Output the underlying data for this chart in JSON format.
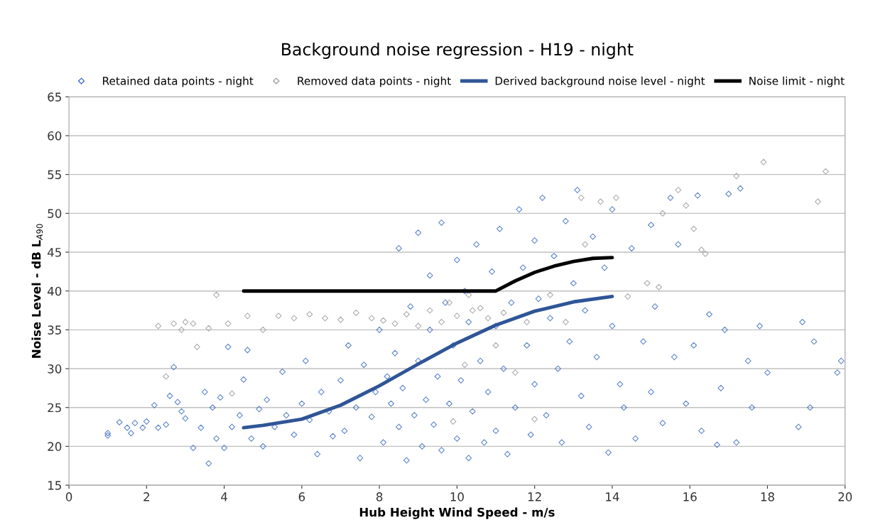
{
  "chart_data": {
    "type": "scatter",
    "title": "Background noise regression - H19 - night",
    "xlabel": "Hub Height Wind Speed - m/s",
    "ylabel": "Noise Level - dB L$_{A90}$",
    "xlim": [
      0,
      20
    ],
    "xticks": [
      0,
      2,
      4,
      6,
      8,
      10,
      12,
      14,
      16,
      18,
      20
    ],
    "ylim": [
      15,
      65
    ],
    "yticks": [
      15,
      20,
      25,
      30,
      35,
      40,
      45,
      50,
      55,
      60,
      65
    ],
    "grid": "y",
    "legend": "top",
    "series": [
      {
        "name": "Retained data points - night",
        "marker": "diamond",
        "color": "#4472c4",
        "x": [
          1.0,
          1.0,
          1.3,
          1.5,
          1.6,
          1.7,
          1.9,
          2.0,
          2.2,
          2.3,
          2.5,
          2.6,
          2.7,
          2.8,
          2.9,
          3.0,
          3.2,
          3.4,
          3.5,
          3.6,
          3.7,
          3.8,
          3.9,
          4.0,
          4.1,
          4.2,
          4.4,
          4.5,
          4.6,
          4.7,
          4.9,
          5.0,
          5.1,
          5.3,
          5.5,
          5.6,
          5.8,
          6.0,
          6.1,
          6.2,
          6.4,
          6.5,
          6.7,
          6.8,
          7.0,
          7.1,
          7.2,
          7.4,
          7.5,
          7.6,
          7.8,
          7.9,
          8.0,
          8.1,
          8.2,
          8.3,
          8.4,
          8.5,
          8.5,
          8.6,
          8.7,
          8.8,
          8.9,
          9.0,
          9.0,
          9.1,
          9.2,
          9.3,
          9.3,
          9.4,
          9.5,
          9.6,
          9.6,
          9.7,
          9.8,
          9.9,
          10.0,
          10.0,
          10.1,
          10.2,
          10.3,
          10.3,
          10.4,
          10.5,
          10.6,
          10.7,
          10.8,
          10.9,
          11.0,
          11.0,
          11.1,
          11.2,
          11.3,
          11.4,
          11.5,
          11.6,
          11.7,
          11.8,
          11.9,
          12.0,
          12.0,
          12.1,
          12.2,
          12.3,
          12.4,
          12.5,
          12.6,
          12.7,
          12.8,
          12.9,
          13.0,
          13.1,
          13.2,
          13.3,
          13.4,
          13.5,
          13.6,
          13.8,
          13.9,
          14.0,
          14.0,
          14.2,
          14.3,
          14.5,
          14.6,
          14.8,
          15.0,
          15.0,
          15.1,
          15.3,
          15.5,
          15.6,
          15.7,
          15.9,
          16.1,
          16.2,
          16.3,
          16.5,
          16.7,
          16.8,
          16.9,
          17.0,
          17.2,
          17.3,
          17.5,
          17.6,
          17.8,
          18.0,
          18.8,
          18.9,
          19.1,
          19.2,
          19.8,
          19.9
        ],
        "values": [
          21.7,
          21.4,
          23.1,
          22.4,
          21.7,
          23.0,
          22.4,
          23.2,
          25.3,
          22.4,
          22.8,
          26.5,
          30.2,
          25.7,
          24.5,
          23.6,
          19.8,
          22.4,
          27.0,
          17.8,
          25.0,
          21.0,
          26.3,
          19.8,
          32.8,
          22.5,
          24.0,
          28.6,
          32.4,
          21.0,
          24.8,
          20.0,
          26.0,
          22.5,
          29.6,
          24.0,
          21.5,
          25.5,
          31.0,
          23.4,
          19.0,
          27.0,
          24.5,
          21.3,
          28.5,
          22.0,
          33.0,
          25.0,
          18.5,
          30.5,
          23.8,
          27.0,
          35.0,
          20.5,
          29.0,
          25.5,
          32.0,
          45.5,
          22.5,
          27.5,
          18.2,
          38.0,
          24.0,
          47.5,
          31.0,
          20.0,
          26.0,
          42.0,
          35.0,
          22.8,
          29.0,
          48.8,
          19.5,
          38.5,
          25.5,
          33.0,
          44.0,
          21.0,
          28.5,
          40.0,
          18.5,
          36.0,
          24.5,
          46.0,
          31.0,
          20.5,
          27.0,
          42.5,
          35.5,
          22.0,
          48.0,
          30.0,
          19.0,
          38.5,
          25.0,
          50.5,
          43.0,
          33.0,
          21.5,
          46.5,
          28.0,
          39.0,
          52.0,
          24.0,
          36.5,
          44.5,
          30.0,
          20.5,
          49.0,
          33.5,
          41.0,
          53.0,
          26.5,
          37.5,
          22.5,
          47.0,
          31.5,
          43.0,
          19.2,
          35.5,
          50.5,
          28.0,
          25.0,
          45.5,
          21.0,
          33.5,
          48.5,
          27.0,
          38.0,
          23.0,
          52.0,
          31.5,
          46.0,
          25.5,
          33.0,
          52.3,
          22.0,
          37.0,
          20.2,
          27.5,
          35.0,
          52.5,
          20.5,
          53.2,
          31.0,
          25.0,
          35.5,
          29.5,
          22.5,
          36.0,
          25.0,
          33.5,
          29.5,
          31.0
        ]
      },
      {
        "name": "Removed data points - night",
        "marker": "diamond",
        "color": "#a0a0a0",
        "x": [
          2.3,
          2.5,
          2.7,
          2.9,
          3.0,
          3.2,
          3.3,
          3.6,
          3.8,
          4.1,
          4.2,
          4.6,
          5.0,
          5.4,
          5.8,
          6.2,
          6.6,
          7.0,
          7.4,
          7.8,
          8.1,
          8.4,
          8.7,
          9.0,
          9.3,
          9.6,
          9.8,
          10.0,
          10.2,
          10.4,
          10.6,
          10.8,
          11.0,
          11.2,
          11.5,
          11.8,
          12.0,
          12.4,
          12.8,
          13.2,
          13.7,
          14.1,
          14.9,
          15.3,
          15.7,
          15.9,
          16.1,
          16.3,
          16.4,
          17.2,
          17.9,
          19.3,
          19.5,
          13.3,
          14.4,
          15.2,
          10.3,
          9.9
        ],
        "values": [
          35.5,
          29.0,
          35.8,
          35.0,
          36.0,
          35.8,
          32.8,
          35.2,
          39.5,
          35.8,
          26.8,
          36.8,
          35.0,
          36.8,
          36.5,
          37.0,
          36.5,
          36.3,
          37.2,
          36.5,
          36.2,
          35.8,
          37.0,
          35.5,
          37.5,
          36.0,
          38.5,
          36.8,
          30.5,
          37.5,
          37.8,
          36.5,
          33.0,
          37.2,
          29.5,
          36.0,
          23.5,
          39.5,
          36.0,
          52.0,
          51.5,
          52.0,
          41.0,
          50.0,
          53.0,
          51.0,
          48.0,
          45.3,
          44.8,
          54.8,
          56.6,
          51.5,
          55.4,
          46.0,
          39.3,
          40.5,
          39.5,
          23.2
        ]
      },
      {
        "name": "Derived background noise level - night",
        "type": "line",
        "marker": "none",
        "color": "#2f5597",
        "x": [
          4.5,
          5,
          6,
          7,
          8,
          9,
          10,
          11,
          12,
          13,
          14
        ],
        "values": [
          22.4,
          22.7,
          23.5,
          25.3,
          27.8,
          30.6,
          33.3,
          35.6,
          37.4,
          38.6,
          39.3
        ]
      },
      {
        "name": "Noise limit - night",
        "type": "line",
        "marker": "none",
        "color": "#000000",
        "x": [
          4.5,
          6,
          8,
          10,
          11,
          11.5,
          12,
          12.5,
          13,
          13.5,
          14
        ],
        "values": [
          40,
          40,
          40,
          40,
          40,
          41.3,
          42.4,
          43.2,
          43.8,
          44.2,
          44.3
        ]
      }
    ]
  }
}
